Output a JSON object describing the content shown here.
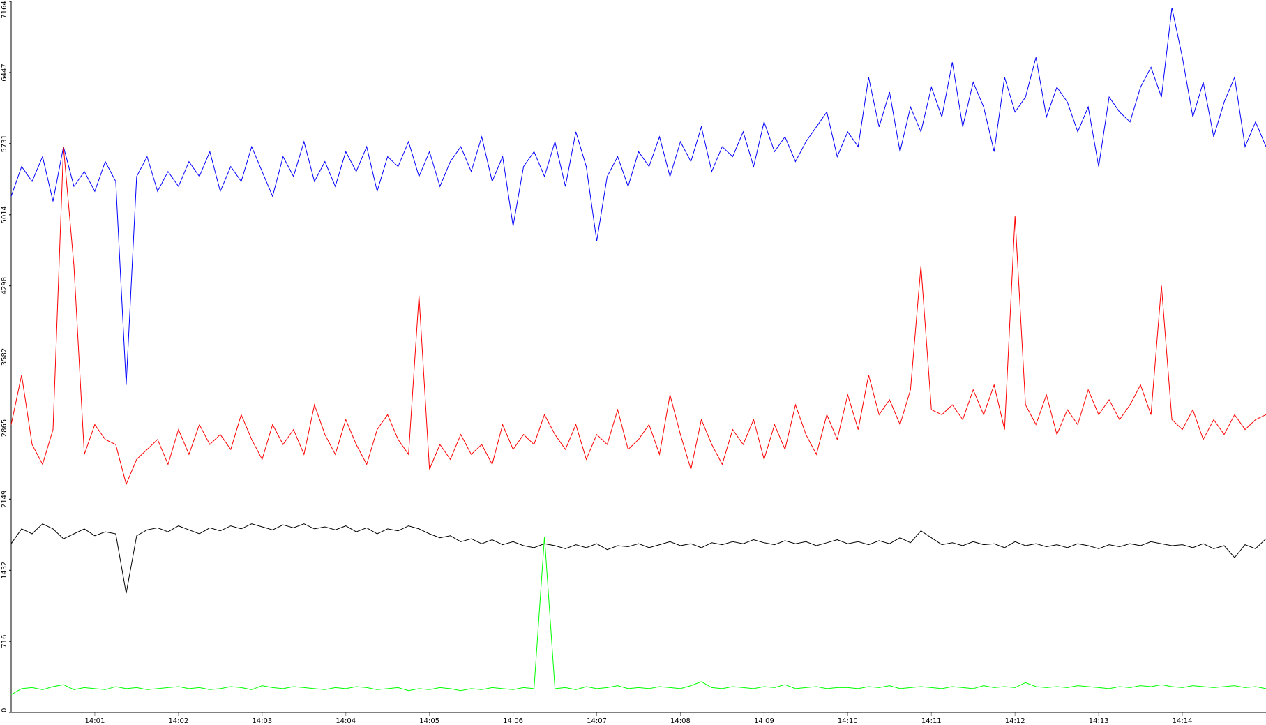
{
  "chart_data": {
    "type": "line",
    "xlim": [
      0,
      15
    ],
    "xticks": [
      {
        "value": 1,
        "label": "14:01"
      },
      {
        "value": 2,
        "label": "14:02"
      },
      {
        "value": 3,
        "label": "14:03"
      },
      {
        "value": 4,
        "label": "14:04"
      },
      {
        "value": 5,
        "label": "14:05"
      },
      {
        "value": 6,
        "label": "14:06"
      },
      {
        "value": 7,
        "label": "14:07"
      },
      {
        "value": 8,
        "label": "14:08"
      },
      {
        "value": 9,
        "label": "14:09"
      },
      {
        "value": 10,
        "label": "14:10"
      },
      {
        "value": 11,
        "label": "14:11"
      },
      {
        "value": 12,
        "label": "14:12"
      },
      {
        "value": 13,
        "label": "14:13"
      },
      {
        "value": 14,
        "label": "14:14"
      }
    ],
    "ylim": [
      0,
      7164
    ],
    "yticks": [
      0,
      716,
      1432,
      2149,
      2865,
      3582,
      4298,
      5014,
      5731,
      6447,
      7164
    ],
    "x": [
      0,
      0.125,
      0.25,
      0.375,
      0.5,
      0.625,
      0.75,
      0.875,
      1,
      1.125,
      1.25,
      1.375,
      1.5,
      1.625,
      1.75,
      1.875,
      2,
      2.125,
      2.25,
      2.375,
      2.5,
      2.625,
      2.75,
      2.875,
      3,
      3.125,
      3.25,
      3.375,
      3.5,
      3.625,
      3.75,
      3.875,
      4,
      4.125,
      4.25,
      4.375,
      4.5,
      4.625,
      4.75,
      4.875,
      5,
      5.125,
      5.25,
      5.375,
      5.5,
      5.625,
      5.75,
      5.875,
      6,
      6.125,
      6.25,
      6.375,
      6.5,
      6.625,
      6.75,
      6.875,
      7,
      7.125,
      7.25,
      7.375,
      7.5,
      7.625,
      7.75,
      7.875,
      8,
      8.125,
      8.25,
      8.375,
      8.5,
      8.625,
      8.75,
      8.875,
      9,
      9.125,
      9.25,
      9.375,
      9.5,
      9.625,
      9.75,
      9.875,
      10,
      10.125,
      10.25,
      10.375,
      10.5,
      10.625,
      10.75,
      10.875,
      11,
      11.125,
      11.25,
      11.375,
      11.5,
      11.625,
      11.75,
      11.875,
      12,
      12.125,
      12.25,
      12.375,
      12.5,
      12.625,
      12.75,
      12.875,
      13,
      13.125,
      13.25,
      13.375,
      13.5,
      13.625,
      13.75,
      13.875,
      14,
      14.125,
      14.25,
      14.375,
      14.5,
      14.625,
      14.75,
      14.875,
      15
    ],
    "series": [
      {
        "color": "#0000ff",
        "values": [
          5200,
          5500,
          5350,
          5600,
          5150,
          5700,
          5300,
          5450,
          5250,
          5550,
          5350,
          3300,
          5400,
          5600,
          5250,
          5450,
          5300,
          5550,
          5400,
          5650,
          5250,
          5500,
          5350,
          5700,
          5450,
          5200,
          5600,
          5400,
          5750,
          5350,
          5550,
          5300,
          5650,
          5450,
          5700,
          5250,
          5600,
          5500,
          5750,
          5400,
          5650,
          5300,
          5550,
          5700,
          5450,
          5800,
          5350,
          5600,
          4900,
          5500,
          5650,
          5400,
          5750,
          5300,
          5850,
          5500,
          4750,
          5400,
          5600,
          5300,
          5650,
          5500,
          5800,
          5400,
          5750,
          5550,
          5900,
          5450,
          5700,
          5600,
          5850,
          5500,
          5950,
          5650,
          5800,
          5550,
          5750,
          5900,
          6050,
          5600,
          5850,
          5700,
          6400,
          5900,
          6250,
          5650,
          6100,
          5850,
          6300,
          6000,
          6550,
          5900,
          6350,
          6100,
          5650,
          6400,
          6050,
          6200,
          6600,
          6000,
          6300,
          6150,
          5850,
          6100,
          5500,
          6200,
          6050,
          5950,
          6300,
          6500,
          6200,
          7100,
          6600,
          6000,
          6350,
          5800,
          6150,
          6400,
          5700,
          5950,
          5700
        ]
      },
      {
        "color": "#ff0000",
        "values": [
          2900,
          3400,
          2700,
          2500,
          2850,
          5700,
          4500,
          2600,
          2900,
          2750,
          2700,
          2300,
          2550,
          2650,
          2750,
          2500,
          2850,
          2600,
          2900,
          2700,
          2800,
          2650,
          3000,
          2750,
          2550,
          2900,
          2700,
          2850,
          2600,
          3100,
          2800,
          2600,
          2950,
          2700,
          2500,
          2850,
          3000,
          2750,
          2600,
          4200,
          2450,
          2700,
          2550,
          2800,
          2600,
          2700,
          2500,
          2900,
          2650,
          2800,
          2700,
          3000,
          2800,
          2650,
          2900,
          2550,
          2800,
          2700,
          3050,
          2650,
          2750,
          2900,
          2600,
          3200,
          2800,
          2450,
          2950,
          2700,
          2500,
          2850,
          2700,
          2950,
          2550,
          2900,
          2650,
          3100,
          2800,
          2600,
          3000,
          2750,
          3200,
          2850,
          3400,
          3000,
          3150,
          2900,
          3250,
          4500,
          3050,
          3000,
          3100,
          2950,
          3250,
          3000,
          3300,
          2850,
          5000,
          3100,
          2900,
          3200,
          2800,
          3050,
          2900,
          3250,
          3000,
          3150,
          2950,
          3100,
          3300,
          3000,
          4300,
          2950,
          2850,
          3050,
          2750,
          2950,
          2800,
          3000,
          2850,
          2950,
          3000
        ]
      },
      {
        "color": "#000000",
        "values": [
          1700,
          1850,
          1800,
          1900,
          1850,
          1750,
          1800,
          1850,
          1780,
          1820,
          1800,
          1200,
          1780,
          1840,
          1860,
          1820,
          1880,
          1840,
          1800,
          1860,
          1830,
          1880,
          1850,
          1900,
          1870,
          1840,
          1890,
          1860,
          1900,
          1850,
          1870,
          1840,
          1880,
          1820,
          1860,
          1800,
          1850,
          1830,
          1880,
          1850,
          1800,
          1760,
          1780,
          1720,
          1750,
          1700,
          1740,
          1690,
          1720,
          1680,
          1660,
          1700,
          1680,
          1650,
          1690,
          1660,
          1700,
          1640,
          1680,
          1670,
          1700,
          1660,
          1690,
          1720,
          1680,
          1700,
          1660,
          1710,
          1690,
          1720,
          1700,
          1740,
          1710,
          1690,
          1730,
          1700,
          1720,
          1680,
          1710,
          1740,
          1700,
          1720,
          1690,
          1730,
          1700,
          1760,
          1710,
          1830,
          1760,
          1690,
          1710,
          1680,
          1720,
          1690,
          1700,
          1660,
          1720,
          1680,
          1700,
          1670,
          1690,
          1660,
          1700,
          1680,
          1650,
          1690,
          1670,
          1700,
          1680,
          1720,
          1700,
          1680,
          1690,
          1660,
          1700,
          1650,
          1680,
          1560,
          1690,
          1650,
          1750
        ]
      },
      {
        "color": "#00ff00",
        "values": [
          180,
          240,
          250,
          230,
          260,
          280,
          230,
          250,
          240,
          230,
          260,
          240,
          250,
          230,
          240,
          250,
          260,
          240,
          250,
          230,
          240,
          260,
          250,
          230,
          270,
          250,
          240,
          260,
          250,
          240,
          230,
          250,
          240,
          260,
          250,
          230,
          240,
          250,
          220,
          240,
          230,
          250,
          240,
          220,
          240,
          230,
          250,
          240,
          230,
          250,
          240,
          1770,
          240,
          250,
          230,
          260,
          240,
          250,
          270,
          240,
          250,
          240,
          260,
          250,
          240,
          270,
          310,
          250,
          240,
          260,
          250,
          240,
          260,
          250,
          280,
          240,
          250,
          260,
          240,
          250,
          250,
          240,
          260,
          250,
          270,
          240,
          250,
          260,
          250,
          240,
          260,
          250,
          240,
          270,
          250,
          260,
          250,
          300,
          260,
          250,
          260,
          250,
          270,
          260,
          250,
          240,
          260,
          250,
          270,
          260,
          280,
          260,
          250,
          270,
          260,
          250,
          260,
          270,
          250,
          260,
          240
        ]
      }
    ]
  }
}
